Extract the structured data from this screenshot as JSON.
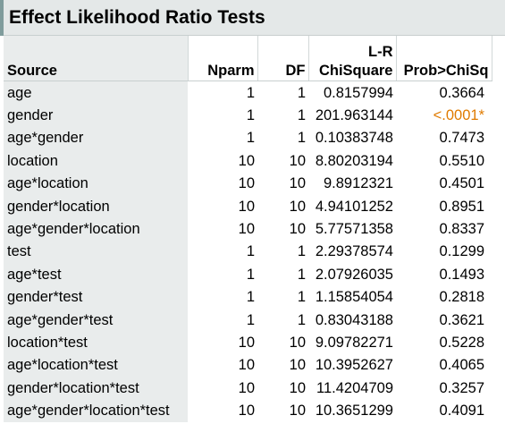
{
  "report": {
    "title": "Effect Likelihood Ratio Tests",
    "columns": {
      "source": "Source",
      "nparm": "Nparm",
      "df": "DF",
      "chisq_line1": "L-R",
      "chisq_line2": "ChiSquare",
      "prob": "Prob>ChiSq"
    },
    "significant_color": "#e07b00",
    "rows": [
      {
        "source": "age",
        "nparm": "1",
        "df": "1",
        "chisq": "0.8157994",
        "prob": "0.3664",
        "significant": false
      },
      {
        "source": "gender",
        "nparm": "1",
        "df": "1",
        "chisq": "201.963144",
        "prob": "<.0001*",
        "significant": true
      },
      {
        "source": "age*gender",
        "nparm": "1",
        "df": "1",
        "chisq": "0.10383748",
        "prob": "0.7473",
        "significant": false
      },
      {
        "source": "location",
        "nparm": "10",
        "df": "10",
        "chisq": "8.80203194",
        "prob": "0.5510",
        "significant": false
      },
      {
        "source": "age*location",
        "nparm": "10",
        "df": "10",
        "chisq": "9.8912321",
        "prob": "0.4501",
        "significant": false
      },
      {
        "source": "gender*location",
        "nparm": "10",
        "df": "10",
        "chisq": "4.94101252",
        "prob": "0.8951",
        "significant": false
      },
      {
        "source": "age*gender*location",
        "nparm": "10",
        "df": "10",
        "chisq": "5.77571358",
        "prob": "0.8337",
        "significant": false
      },
      {
        "source": "test",
        "nparm": "1",
        "df": "1",
        "chisq": "2.29378574",
        "prob": "0.1299",
        "significant": false
      },
      {
        "source": "age*test",
        "nparm": "1",
        "df": "1",
        "chisq": "2.07926035",
        "prob": "0.1493",
        "significant": false
      },
      {
        "source": "gender*test",
        "nparm": "1",
        "df": "1",
        "chisq": "1.15854054",
        "prob": "0.2818",
        "significant": false
      },
      {
        "source": "age*gender*test",
        "nparm": "1",
        "df": "1",
        "chisq": "0.83043188",
        "prob": "0.3621",
        "significant": false
      },
      {
        "source": "location*test",
        "nparm": "10",
        "df": "10",
        "chisq": "9.09782271",
        "prob": "0.5228",
        "significant": false
      },
      {
        "source": "age*location*test",
        "nparm": "10",
        "df": "10",
        "chisq": "10.3952627",
        "prob": "0.4065",
        "significant": false
      },
      {
        "source": "gender*location*test",
        "nparm": "10",
        "df": "10",
        "chisq": "11.4204709",
        "prob": "0.3257",
        "significant": false
      },
      {
        "source": "age*gender*location*test",
        "nparm": "10",
        "df": "10",
        "chisq": "10.3651299",
        "prob": "0.4091",
        "significant": false
      }
    ]
  }
}
